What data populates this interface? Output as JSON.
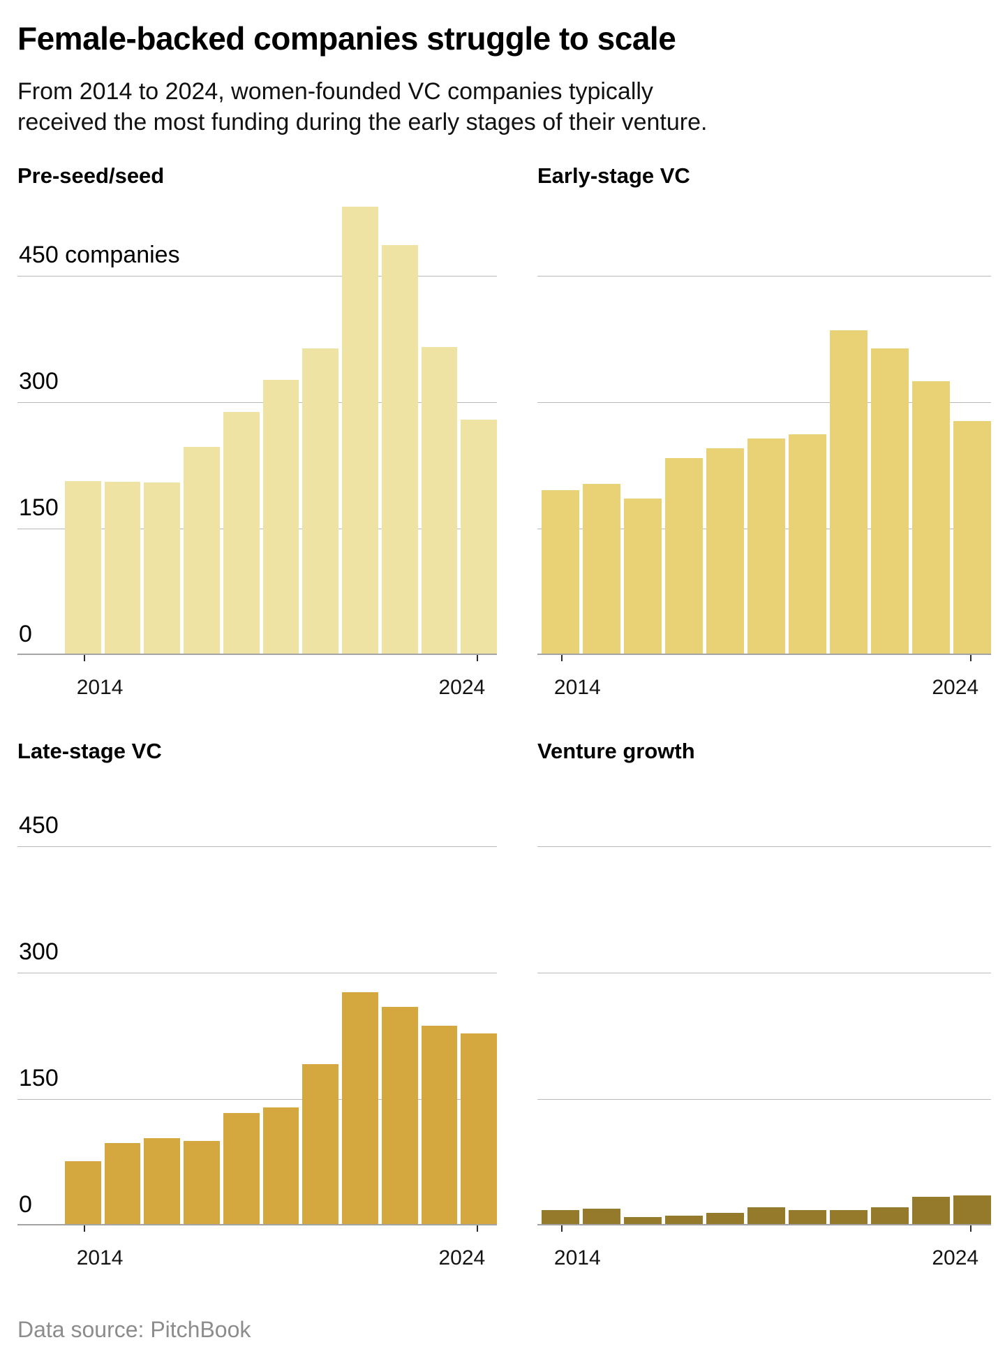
{
  "header": {
    "title": "Female-backed companies struggle to scale",
    "subtitle_line1": "From 2014 to 2024, women-founded VC companies typically",
    "subtitle_line2": "received the most funding during the early stages of their venture."
  },
  "axis": {
    "x_first_label": "2014",
    "x_last_label": "2024",
    "ylim": [
      0,
      450
    ],
    "gridline_values": [
      450,
      300,
      150,
      0
    ],
    "grid": "horizontal lines only",
    "unit_label": "companies"
  },
  "colors": {
    "preseed_bar": "#EFE3A3",
    "early_bar": "#E9D276",
    "late_bar": "#D4A83E",
    "venture_bar": "#957A2C",
    "gridline": "#B9B9B9",
    "baseline": "#A3A3A3",
    "footer_text": "#8C8C8C"
  },
  "chart_data": [
    {
      "type": "bar",
      "title": "Pre-seed/seed",
      "x": [
        2014,
        2015,
        2016,
        2017,
        2018,
        2019,
        2020,
        2021,
        2022,
        2023,
        2024
      ],
      "values": [
        205,
        204,
        203,
        245,
        287,
        325,
        362,
        530,
        485,
        364,
        278
      ],
      "color": "#EFE3A3",
      "y_axis_labels": [
        "450 companies",
        "300",
        "150",
        "0"
      ],
      "ylabel_values": [
        450,
        300,
        150,
        0
      ]
    },
    {
      "type": "bar",
      "title": "Early-stage VC",
      "x": [
        2014,
        2015,
        2016,
        2017,
        2018,
        2019,
        2020,
        2021,
        2022,
        2023,
        2024
      ],
      "values": [
        194,
        201,
        184,
        232,
        244,
        255,
        260,
        384,
        362,
        323,
        276
      ],
      "color": "#E9D276",
      "y_axis_labels": [],
      "ylabel_values": []
    },
    {
      "type": "bar",
      "title": "Late-stage VC",
      "x": [
        2014,
        2015,
        2016,
        2017,
        2018,
        2019,
        2020,
        2021,
        2022,
        2023,
        2024
      ],
      "values": [
        75,
        96,
        102,
        99,
        132,
        138,
        190,
        275,
        258,
        235,
        226
      ],
      "color": "#D4A83E",
      "y_axis_labels": [
        "450",
        "300",
        "150",
        "0"
      ],
      "ylabel_values": [
        450,
        300,
        150,
        0
      ]
    },
    {
      "type": "bar",
      "title": "Venture growth",
      "x": [
        2014,
        2015,
        2016,
        2017,
        2018,
        2019,
        2020,
        2021,
        2022,
        2023,
        2024
      ],
      "values": [
        17,
        18,
        8,
        10,
        13,
        20,
        17,
        17,
        20,
        32,
        34
      ],
      "color": "#957A2C",
      "y_axis_labels": [],
      "ylabel_values": []
    }
  ],
  "footer": {
    "source": "Data source: PitchBook"
  }
}
